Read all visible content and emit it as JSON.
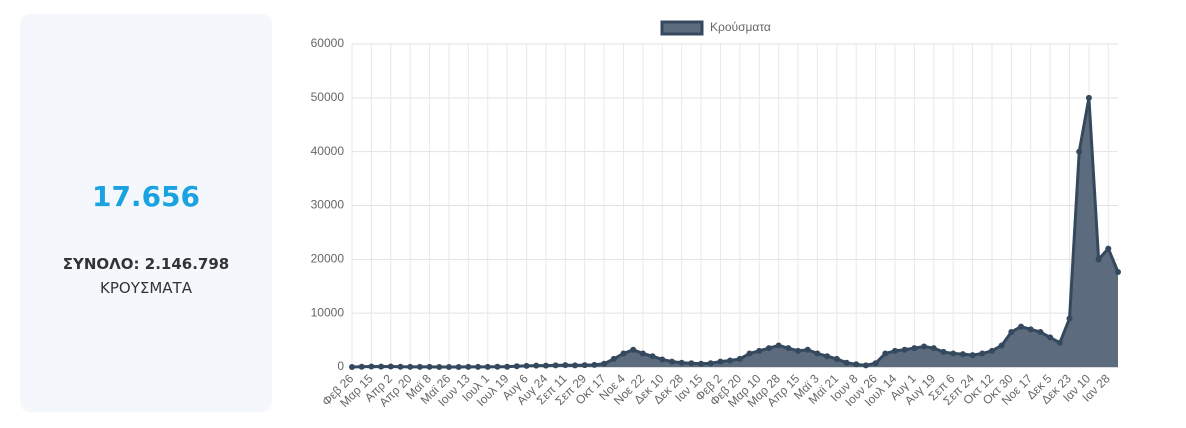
{
  "card": {
    "value": "17.656",
    "total": "ΣΥΝΟΛΟ: 2.146.798",
    "label": "ΚΡΟΥΣΜΑΤΑ"
  },
  "chart_data": {
    "type": "line",
    "categories": [
      "Φεβ 26",
      null,
      "Μαρ 15",
      null,
      "Απρ 2",
      null,
      "Απρ 20",
      null,
      "Μαϊ 8",
      null,
      "Μαϊ 26",
      null,
      "Ιουν 13",
      null,
      "Ιουλ 1",
      null,
      "Ιουλ 19",
      null,
      "Αυγ 6",
      null,
      "Αυγ 24",
      null,
      "Σεπ 11",
      null,
      "Σεπ 29",
      null,
      "Οκτ 17",
      null,
      "Νοε 4",
      null,
      "Νοε 22",
      null,
      "Δεκ 10",
      null,
      "Δεκ 28",
      null,
      "Ιαν 15",
      null,
      "Φεβ 2",
      null,
      "Φεβ 20",
      null,
      "Μαρ 10",
      null,
      "Μαρ 28",
      null,
      "Απρ 15",
      null,
      "Μαϊ 3",
      null,
      "Μαϊ 21",
      null,
      "Ιουν 8",
      null,
      "Ιουν 26",
      null,
      "Ιουλ 14",
      null,
      "Αυγ 1",
      null,
      "Αυγ 19",
      null,
      "Σεπ 6",
      null,
      "Σεπ 24",
      null,
      "Οκτ 12",
      null,
      "Οκτ 30",
      null,
      "Νοε 17",
      null,
      "Δεκ 5",
      null,
      "Δεκ 23",
      null,
      "Ιαν 10",
      null,
      "Ιαν 28",
      null
    ],
    "series": [
      {
        "name": "Κρούσματα",
        "color": "#34495e",
        "fill": "#5c6b7e",
        "values": [
          0,
          50,
          100,
          80,
          100,
          50,
          30,
          20,
          15,
          10,
          10,
          10,
          20,
          30,
          30,
          40,
          50,
          150,
          200,
          250,
          250,
          300,
          350,
          300,
          350,
          400,
          600,
          1500,
          2500,
          3200,
          2500,
          2000,
          1400,
          1000,
          800,
          700,
          600,
          700,
          1000,
          1200,
          1500,
          2500,
          3000,
          3500,
          4000,
          3500,
          3000,
          3200,
          2500,
          2000,
          1500,
          800,
          500,
          300,
          700,
          2500,
          3000,
          3200,
          3500,
          3800,
          3500,
          2800,
          2500,
          2400,
          2200,
          2500,
          3000,
          4000,
          6500,
          7500,
          7000,
          6500,
          5500,
          4500,
          9000,
          40000,
          50000,
          20000,
          22000,
          17656
        ]
      }
    ],
    "ylim": [
      0,
      60000
    ],
    "yticks": [
      0,
      10000,
      20000,
      30000,
      40000,
      50000,
      60000
    ],
    "grid": true,
    "legend": "top"
  }
}
